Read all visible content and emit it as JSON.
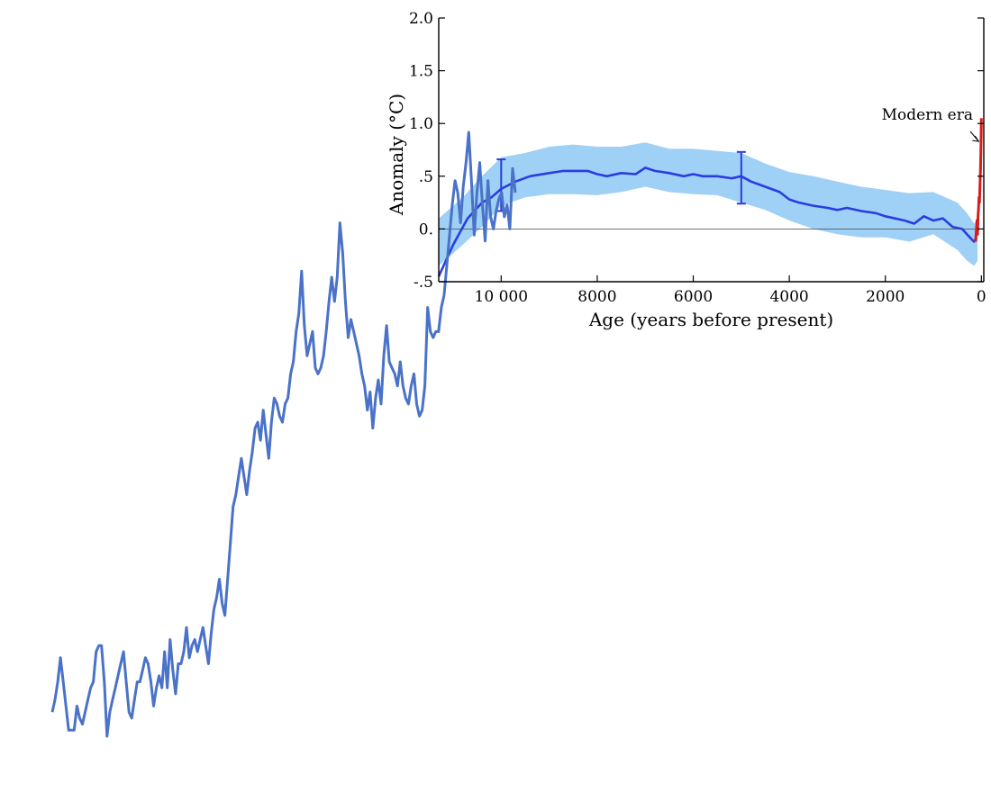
{
  "chart_data": {
    "type": "line",
    "xlabel": "Age (years before present)",
    "ylabel": "Anomaly (°C)",
    "x_reversed": true,
    "xlim": [
      11300,
      -50
    ],
    "ylim": [
      -0.5,
      2.0
    ],
    "x_ticks": [
      {
        "value": 10000,
        "label": "10 000"
      },
      {
        "value": 8000,
        "label": "8000"
      },
      {
        "value": 6000,
        "label": "6000"
      },
      {
        "value": 4000,
        "label": "4000"
      },
      {
        "value": 2000,
        "label": "2000"
      },
      {
        "value": 0,
        "label": "0"
      }
    ],
    "y_ticks": [
      {
        "value": 2.0,
        "label": "2.0"
      },
      {
        "value": 1.5,
        "label": "1.5"
      },
      {
        "value": 1.0,
        "label": "1.0"
      },
      {
        "value": 0.5,
        "label": ".5"
      },
      {
        "value": 0.0,
        "label": "0."
      },
      {
        "value": -0.5,
        "label": "-.5"
      }
    ],
    "zero_line": true,
    "annotation": {
      "text": "Modern era",
      "arrow_to_x": 0,
      "arrow_to_y": 0.83
    },
    "colors": {
      "band": "#9fd0f6",
      "mean": "#2a3ddf",
      "modern": "#d81b1b",
      "proxy": "#4a72c8"
    },
    "series": [
      {
        "kind": "band",
        "x": [
          11300,
          10800,
          10400,
          10000,
          9500,
          9000,
          8500,
          8000,
          7500,
          7000,
          6500,
          6000,
          5500,
          5000,
          4500,
          4000,
          3500,
          3000,
          2500,
          2000,
          1500,
          1000,
          500,
          300,
          150,
          80
        ],
        "lower": [
          -0.35,
          -0.15,
          0.02,
          0.22,
          0.3,
          0.33,
          0.33,
          0.32,
          0.35,
          0.4,
          0.35,
          0.33,
          0.32,
          0.25,
          0.18,
          0.08,
          0.0,
          -0.05,
          -0.08,
          -0.08,
          -0.12,
          -0.05,
          -0.2,
          -0.3,
          -0.35,
          -0.3
        ],
        "upper": [
          0.1,
          0.3,
          0.5,
          0.68,
          0.72,
          0.78,
          0.8,
          0.78,
          0.78,
          0.82,
          0.76,
          0.76,
          0.74,
          0.72,
          0.62,
          0.54,
          0.5,
          0.45,
          0.4,
          0.37,
          0.34,
          0.35,
          0.25,
          0.15,
          0.05,
          0.1
        ]
      },
      {
        "kind": "mean",
        "x": [
          11300,
          11000,
          10700,
          10400,
          10200,
          10000,
          9700,
          9400,
          9000,
          8700,
          8500,
          8200,
          8000,
          7800,
          7500,
          7200,
          7000,
          6800,
          6500,
          6200,
          6000,
          5800,
          5500,
          5200,
          5000,
          4800,
          4500,
          4200,
          4000,
          3800,
          3500,
          3200,
          3000,
          2800,
          2500,
          2200,
          2000,
          1800,
          1600,
          1400,
          1200,
          1000,
          800,
          600,
          400,
          300,
          200,
          150,
          100
        ],
        "y": [
          -0.45,
          -0.15,
          0.1,
          0.25,
          0.3,
          0.38,
          0.45,
          0.5,
          0.53,
          0.55,
          0.55,
          0.55,
          0.52,
          0.5,
          0.53,
          0.52,
          0.58,
          0.55,
          0.53,
          0.5,
          0.52,
          0.5,
          0.5,
          0.48,
          0.5,
          0.45,
          0.4,
          0.35,
          0.28,
          0.25,
          0.22,
          0.2,
          0.18,
          0.2,
          0.17,
          0.15,
          0.12,
          0.1,
          0.08,
          0.05,
          0.12,
          0.08,
          0.1,
          0.02,
          0.0,
          -0.05,
          -0.1,
          -0.12,
          -0.08
        ]
      },
      {
        "kind": "modern",
        "x": [
          120,
          100,
          90,
          80,
          70,
          60,
          50,
          40,
          30,
          20,
          10,
          5,
          0
        ],
        "y": [
          -0.12,
          0.02,
          0.08,
          -0.05,
          0.12,
          0.18,
          0.3,
          0.25,
          0.4,
          0.55,
          0.75,
          0.9,
          1.05
        ]
      },
      {
        "kind": "errorbar",
        "points": [
          {
            "x": 10000,
            "low": 0.17,
            "high": 0.66
          },
          {
            "x": 5000,
            "low": 0.24,
            "high": 0.73
          }
        ]
      }
    ],
    "proxy_trace": {
      "note_free": true,
      "y_scale_min": 0.0,
      "values": [
        0.04,
        0.06,
        0.09,
        0.13,
        0.09,
        0.05,
        0.01,
        0.01,
        0.01,
        0.05,
        0.03,
        0.02,
        0.04,
        0.06,
        0.08,
        0.09,
        0.14,
        0.15,
        0.15,
        0.09,
        0.0,
        0.04,
        0.06,
        0.08,
        0.1,
        0.12,
        0.14,
        0.09,
        0.04,
        0.03,
        0.06,
        0.09,
        0.09,
        0.11,
        0.13,
        0.12,
        0.09,
        0.05,
        0.08,
        0.1,
        0.08,
        0.14,
        0.08,
        0.16,
        0.11,
        0.07,
        0.12,
        0.12,
        0.14,
        0.18,
        0.13,
        0.15,
        0.16,
        0.14,
        0.16,
        0.18,
        0.15,
        0.12,
        0.17,
        0.21,
        0.23,
        0.26,
        0.22,
        0.2,
        0.26,
        0.32,
        0.38,
        0.4,
        0.43,
        0.46,
        0.43,
        0.4,
        0.44,
        0.47,
        0.51,
        0.52,
        0.49,
        0.54,
        0.5,
        0.46,
        0.52,
        0.56,
        0.55,
        0.53,
        0.52,
        0.55,
        0.56,
        0.6,
        0.62,
        0.67,
        0.7,
        0.77,
        0.68,
        0.63,
        0.65,
        0.67,
        0.61,
        0.6,
        0.61,
        0.63,
        0.67,
        0.72,
        0.76,
        0.72,
        0.76,
        0.85,
        0.8,
        0.72,
        0.66,
        0.69,
        0.67,
        0.65,
        0.63,
        0.6,
        0.58,
        0.54,
        0.57,
        0.51,
        0.56,
        0.59,
        0.55,
        0.63,
        0.68,
        0.62,
        0.61,
        0.6,
        0.58,
        0.62,
        0.58,
        0.56,
        0.55,
        0.58,
        0.6,
        0.55,
        0.53,
        0.54,
        0.58,
        0.71,
        0.67,
        0.66,
        0.67,
        0.67,
        0.71,
        0.73,
        0.78,
        0.83,
        0.88,
        0.92,
        0.9,
        0.85,
        0.91,
        0.95,
        1.0,
        0.92,
        0.83,
        0.9,
        0.95,
        0.88,
        0.82,
        0.92,
        0.86,
        0.84,
        0.87,
        0.89,
        0.9,
        0.86,
        0.88,
        0.84,
        0.94,
        0.9
      ]
    }
  }
}
